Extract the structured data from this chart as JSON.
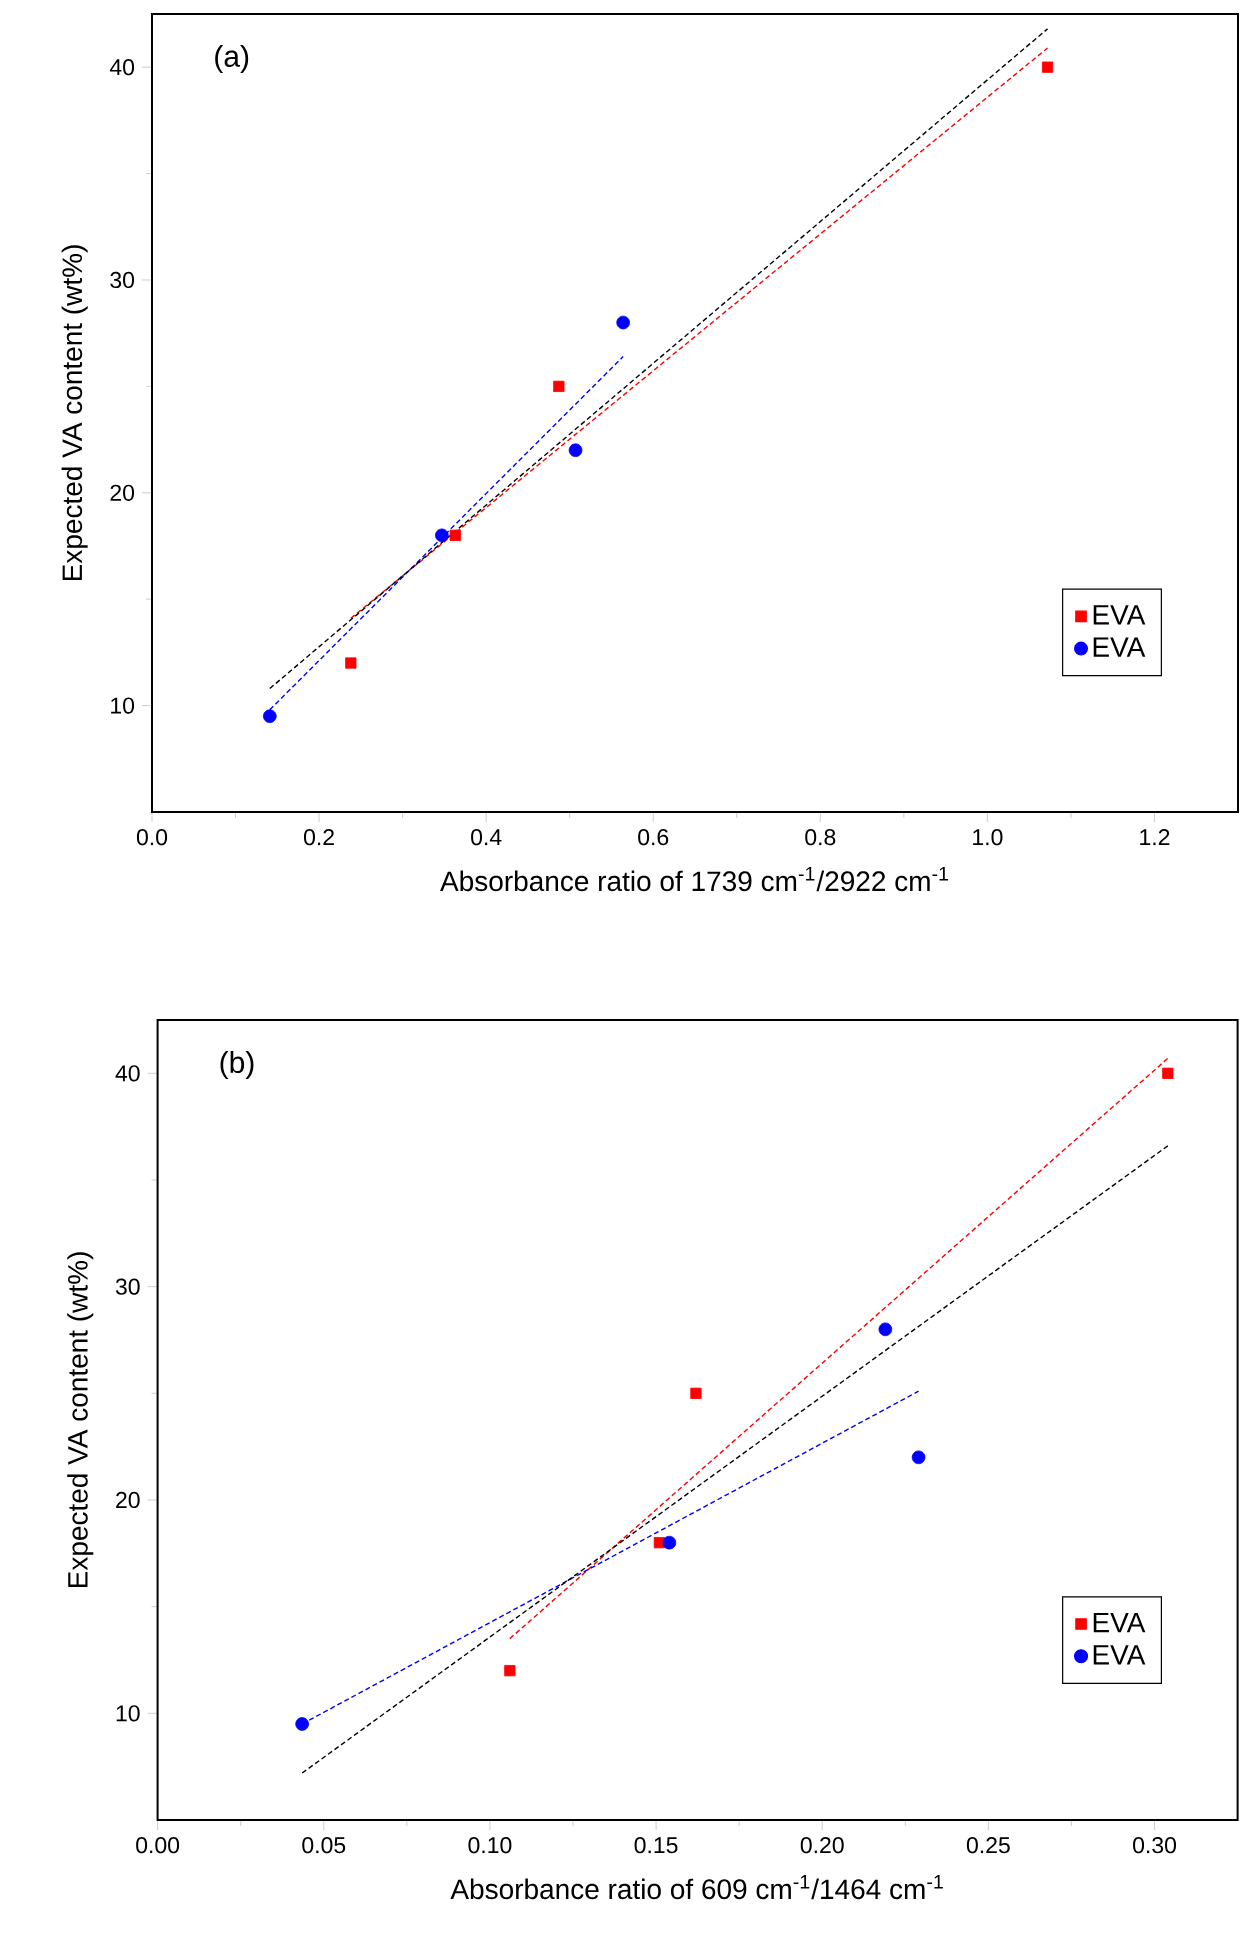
{
  "chart_data": [
    {
      "type": "scatter",
      "xlabel": "Absorbance ratio of 1739 cm$^{-1}$/2922 cm$^{-1}$",
      "ylabel": "Expected VA content (wt%)",
      "annotations": [
        "(a)"
      ],
      "xlim": [
        0,
        1.3
      ],
      "ylim": [
        5,
        42.5
      ],
      "xticks": [
        {
          "value": 0,
          "label": "0.0"
        },
        0.2,
        0.4,
        0.6,
        0.8,
        {
          "value": 1,
          "label": "1.0"
        },
        1.2
      ],
      "yticks": [
        10,
        20,
        30,
        40
      ],
      "grid": false,
      "legend": "bottom right",
      "series": [
        {
          "name": "EVA",
          "marker": "square",
          "color": "#ff0000",
          "x": [
            0.238,
            0.363,
            0.487,
            1.072
          ],
          "values": [
            12,
            18,
            25,
            40
          ]
        },
        {
          "name": "EVA",
          "marker": "circle",
          "color": "#0000ff",
          "x": [
            0.141,
            0.347,
            0.507,
            0.564
          ],
          "values": [
            9.5,
            18,
            22,
            28
          ]
        },
        {
          "type": "line",
          "line_style": "dashed",
          "color": "#ff0000",
          "x": [
            0.238,
            1.072
          ],
          "values": [
            14.1,
            40.9
          ]
        },
        {
          "type": "line",
          "line_style": "dashed",
          "color": "#0000ff",
          "x": [
            0.141,
            0.564
          ],
          "values": [
            9.8,
            26.4
          ]
        },
        {
          "type": "line",
          "line_style": "dashed",
          "color": "#000000",
          "x": [
            0.141,
            1.072
          ],
          "values": [
            10.8,
            41.8
          ]
        }
      ]
    },
    {
      "type": "scatter",
      "xlabel": "Absorbance ratio of 609 cm$^{-1}$/1464 cm$^{-1}$",
      "ylabel": "Expected VA content (wt%)",
      "annotations": [
        "(b)"
      ],
      "xlim": [
        0,
        0.325
      ],
      "ylim": [
        5,
        42.5
      ],
      "xticks": [
        {
          "value": 0,
          "label": "0.00"
        },
        0.05,
        {
          "value": 0.1,
          "label": "0.10"
        },
        0.15,
        {
          "value": 0.2,
          "label": "0.20"
        },
        0.25,
        {
          "value": 0.3,
          "label": "0.30"
        }
      ],
      "yticks": [
        10,
        20,
        30,
        40
      ],
      "grid": false,
      "legend": "bottom right",
      "series": [
        {
          "name": "EVA",
          "marker": "square",
          "color": "#ff0000",
          "x": [
            0.106,
            0.151,
            0.162,
            0.304
          ],
          "values": [
            12,
            18,
            25,
            40
          ]
        },
        {
          "name": "EVA",
          "marker": "circle",
          "color": "#0000ff",
          "x": [
            0.0435,
            0.154,
            0.219,
            0.229
          ],
          "values": [
            9.5,
            18,
            28,
            22
          ]
        },
        {
          "type": "line",
          "line_style": "dashed",
          "color": "#ff0000",
          "x": [
            0.106,
            0.304
          ],
          "values": [
            13.5,
            40.7
          ]
        },
        {
          "type": "line",
          "line_style": "dashed",
          "color": "#0000ff",
          "x": [
            0.0435,
            0.229
          ],
          "values": [
            9.5,
            25.1
          ]
        },
        {
          "type": "line",
          "line_style": "dashed",
          "color": "#000000",
          "x": [
            0.0435,
            0.304
          ],
          "values": [
            7.2,
            36.6
          ]
        }
      ]
    }
  ]
}
